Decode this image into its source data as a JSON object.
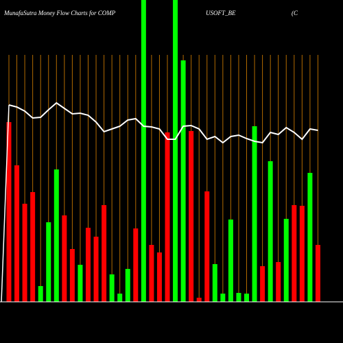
{
  "chart_data": {
    "type": "bar",
    "title_parts": [
      "MunafaSutra  Money Flow  Charts for COMP",
      "USOFT_BE",
      "(C"
    ],
    "categories": [
      null,
      null,
      null,
      null,
      null,
      null,
      null,
      null,
      null,
      null,
      null,
      null,
      null,
      null,
      null,
      null,
      null,
      null,
      null,
      null,
      null,
      null,
      null,
      null,
      null,
      null,
      null,
      null,
      null,
      null,
      null,
      null,
      null,
      null,
      null,
      null,
      null,
      null,
      null,
      null
    ],
    "values": [
      262,
      199,
      143,
      160,
      23,
      116,
      193,
      126,
      77,
      54,
      108,
      95,
      141,
      40,
      12,
      48,
      107,
      460,
      83,
      72,
      247,
      460,
      352,
      249,
      6,
      161,
      55,
      12,
      120,
      13,
      12,
      256,
      52,
      205,
      58,
      121,
      141,
      140,
      188,
      83
    ],
    "colors": [
      "#ff0000",
      "#ff0000",
      "#ff0000",
      "#ff0000",
      "#00ff00",
      "#00ff00",
      "#00ff00",
      "#ff0000",
      "#ff0000",
      "#00ff00",
      "#ff0000",
      "#ff0000",
      "#ff0000",
      "#00ff00",
      "#00ff00",
      "#00ff00",
      "#ff0000",
      "#00ff00",
      "#ff0000",
      "#ff0000",
      "#ff0000",
      "#00ff00",
      "#00ff00",
      "#ff0000",
      "#ff0000",
      "#ff0000",
      "#00ff00",
      "#00ff00",
      "#00ff00",
      "#00ff00",
      "#00ff00",
      "#00ff00",
      "#ff0000",
      "#00ff00",
      "#ff0000",
      "#00ff00",
      "#ff0000",
      "#ff0000",
      "#00ff00",
      "#ff0000"
    ],
    "line": {
      "color": "#ffffff",
      "values": [
        287,
        284,
        278,
        268,
        269,
        280,
        290,
        282,
        274,
        275,
        272,
        262,
        248,
        252,
        256,
        265,
        267,
        256,
        255,
        252,
        237,
        237,
        256,
        257,
        252,
        237,
        241,
        232,
        241,
        243,
        238,
        234,
        232,
        247,
        244,
        254,
        247,
        237,
        252,
        250
      ]
    },
    "ylim": [
      0,
      440
    ],
    "grid_color": "#b36b00",
    "background": "#000000"
  }
}
